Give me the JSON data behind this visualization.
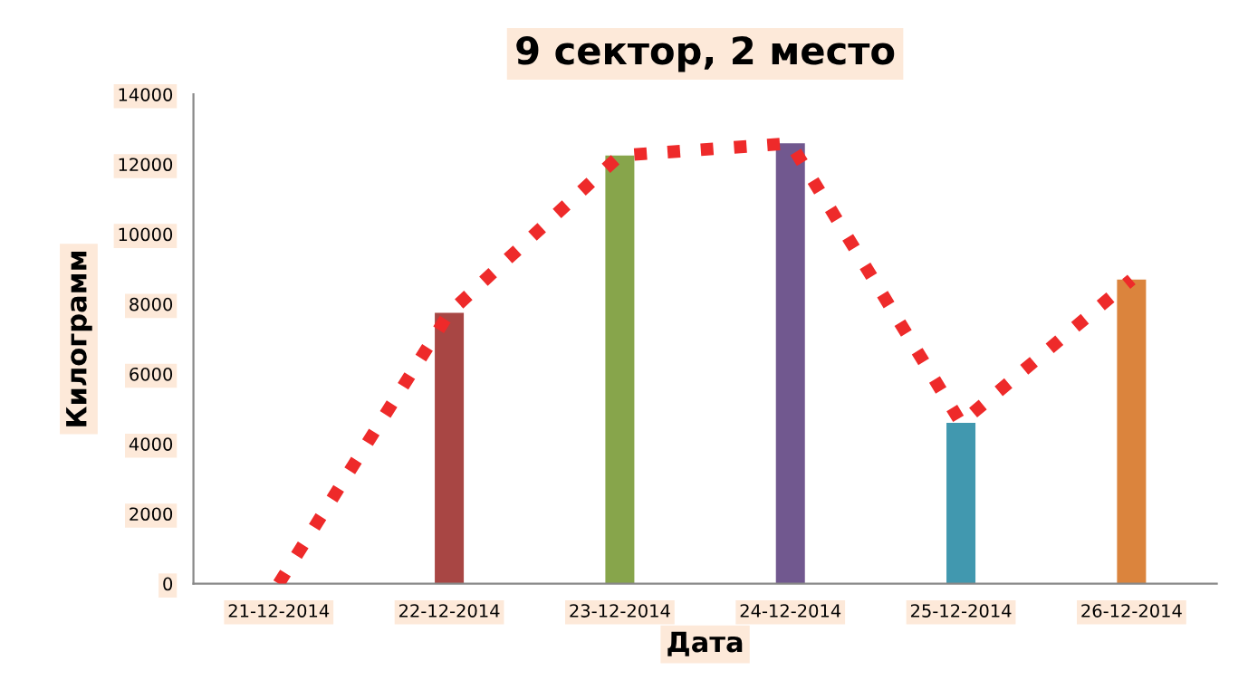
{
  "chart_data": {
    "type": "bar",
    "title": "9 сектор, 2 место",
    "xlabel": "Дата",
    "ylabel": "Килограмм",
    "categories": [
      "21-12-2014",
      "22-12-2014",
      "23-12-2014",
      "24-12-2014",
      "25-12-2014",
      "26-12-2014"
    ],
    "series": [
      {
        "values": [
          0,
          7750,
          12250,
          12600,
          4600,
          8700
        ],
        "colors": [
          "#4f81bd",
          "#a84644",
          "#87a54b",
          "#71588f",
          "#4198af",
          "#db843d"
        ]
      },
      {
        "type": "line",
        "values": [
          0,
          7750,
          12250,
          12600,
          4600,
          8700
        ],
        "color": "#ee2a2a",
        "line_style": "dotted"
      }
    ],
    "ylim": [
      0,
      14000
    ],
    "yticks": [
      0,
      2000,
      4000,
      6000,
      8000,
      10000,
      12000,
      14000
    ],
    "grid": false
  }
}
